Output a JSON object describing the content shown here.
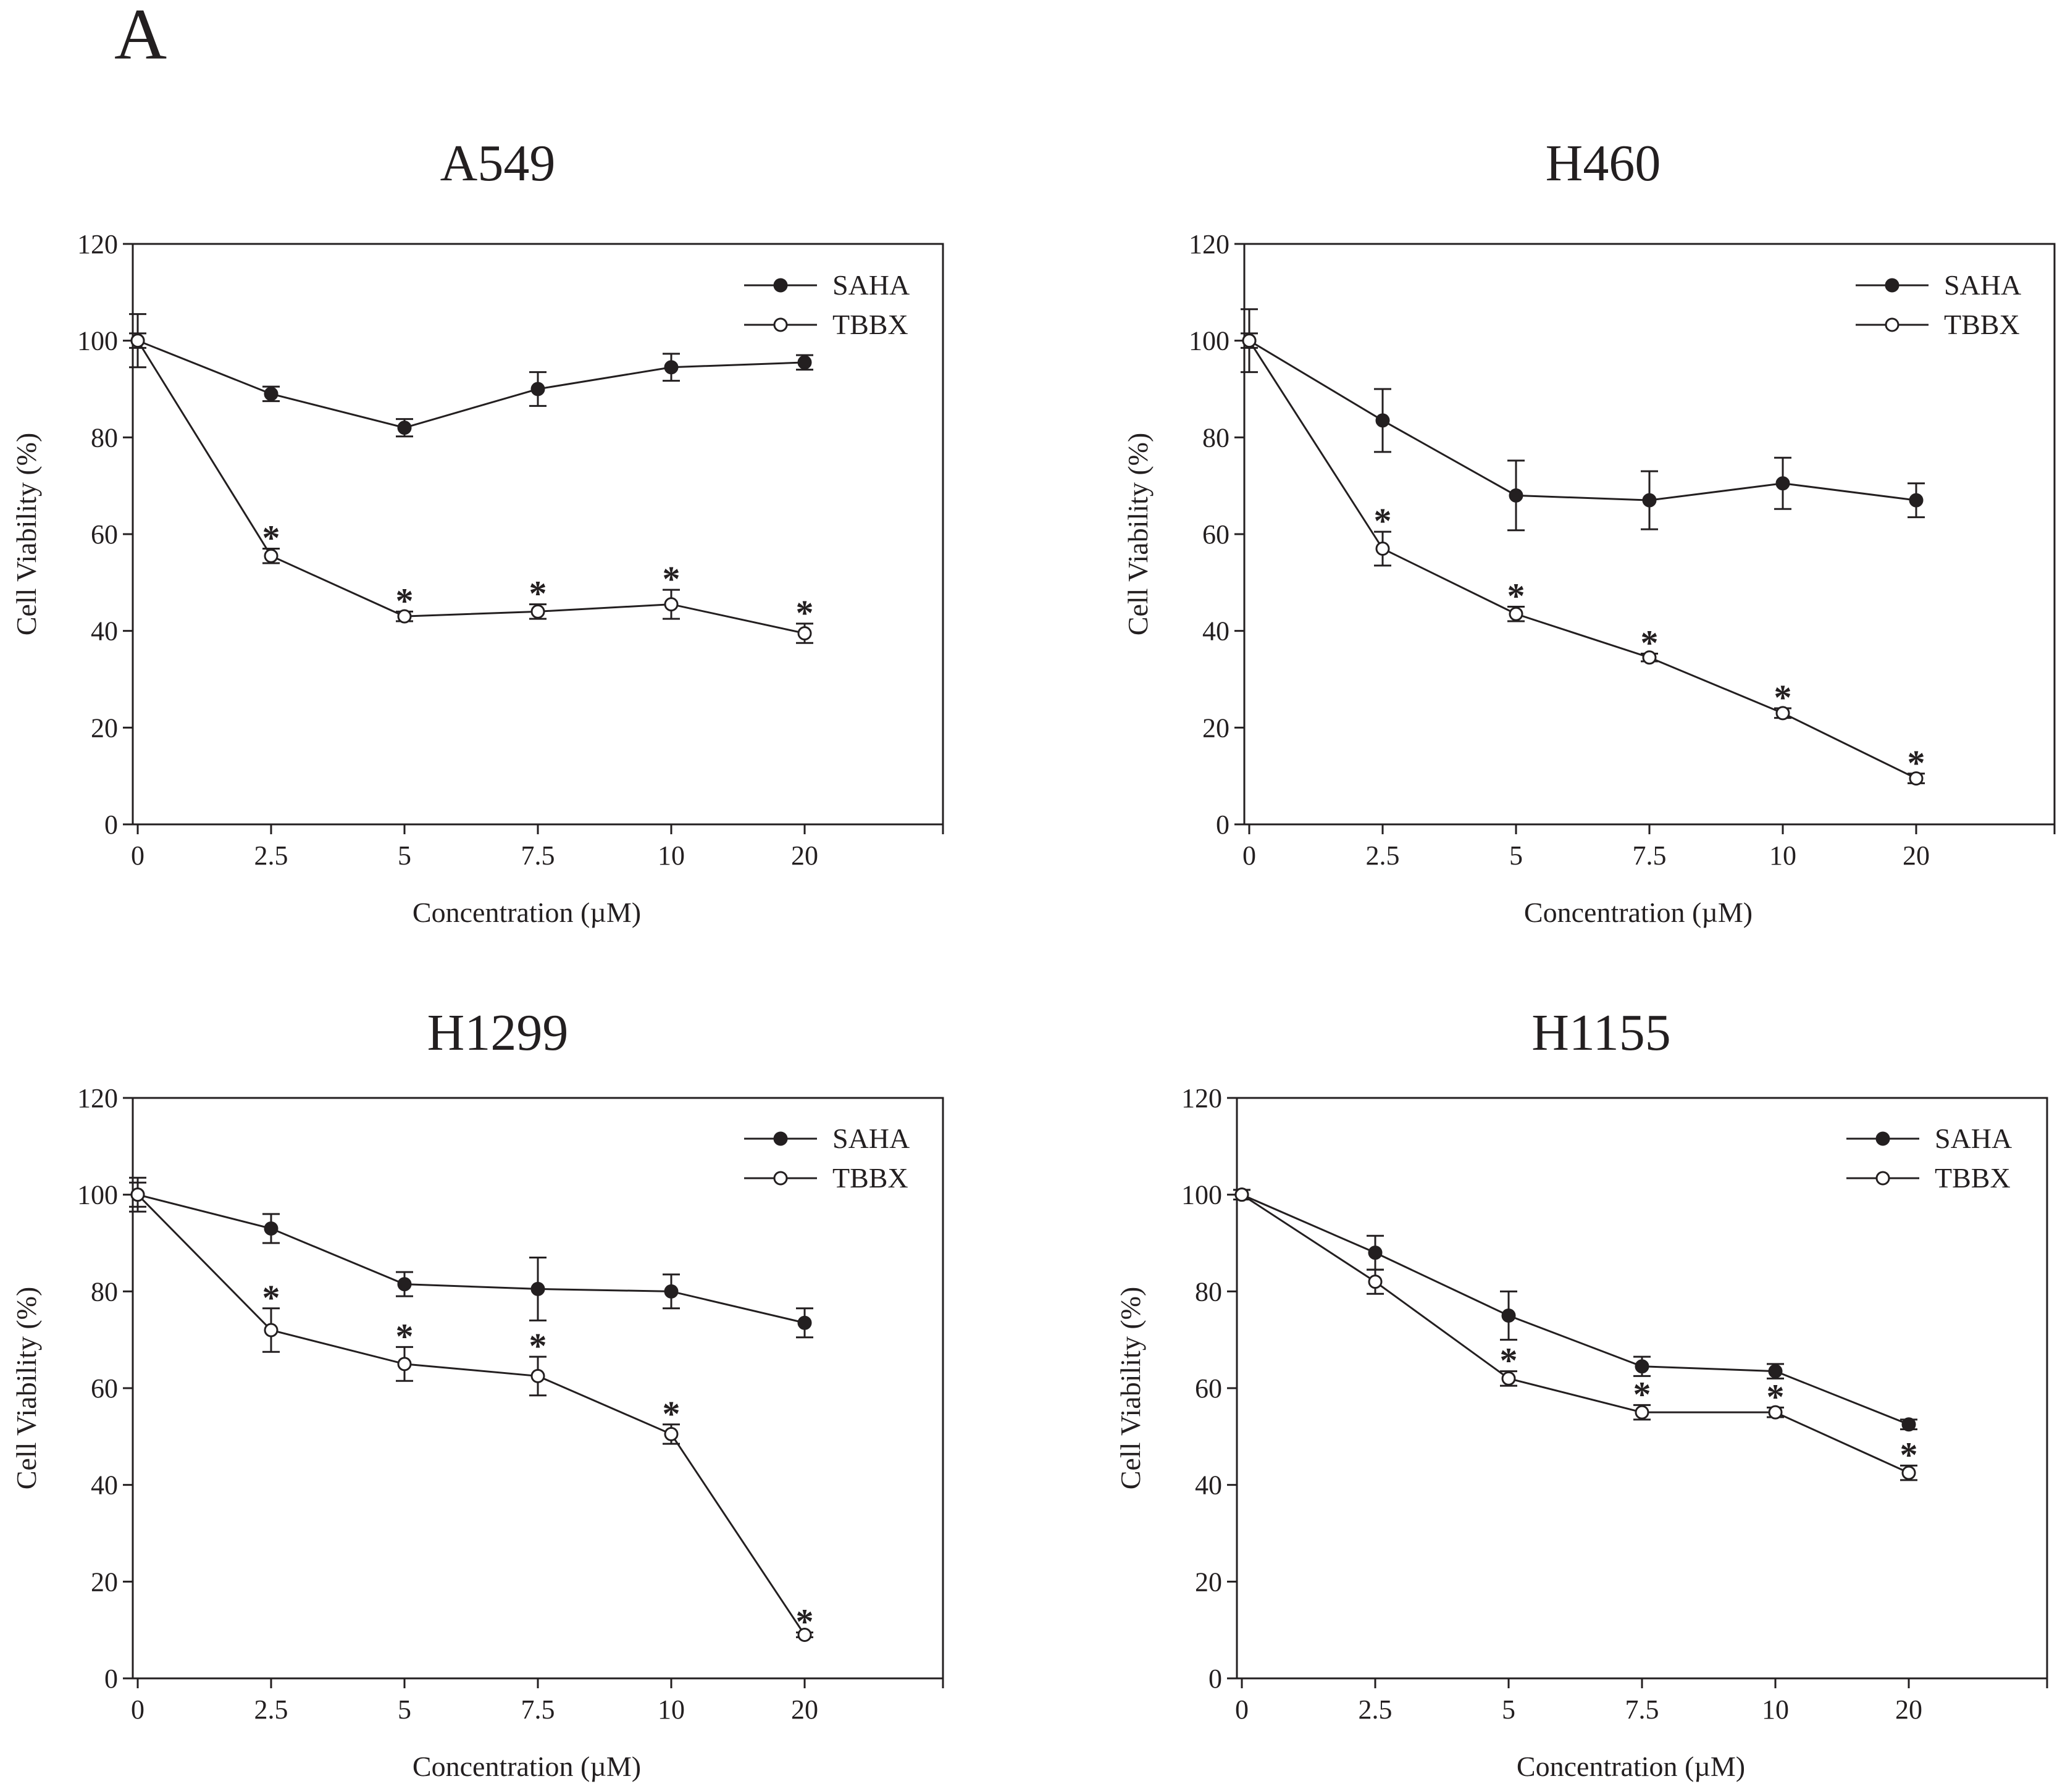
{
  "figure": {
    "panel_label": "A"
  },
  "chart_data": [
    {
      "type": "line",
      "title": "A549",
      "xlabel": "Concentration (µM)",
      "ylabel": "Cell Viability (%)",
      "categories": [
        "0",
        "2.5",
        "5",
        "7.5",
        "10",
        "20"
      ],
      "ylim": [
        0,
        120
      ],
      "yticks": [
        "0",
        "20",
        "40",
        "60",
        "80",
        "100",
        "120"
      ],
      "grid": false,
      "legend": "top-right",
      "series": [
        {
          "name": "SAHA",
          "marker": "filled",
          "values": [
            100,
            89,
            82,
            90,
            94.5,
            95.5
          ],
          "errors": [
            5.5,
            1.5,
            1.8,
            3.5,
            2.8,
            1.5
          ],
          "significance": [
            "",
            "",
            "",
            "",
            "",
            ""
          ]
        },
        {
          "name": "TBBX",
          "marker": "open",
          "values": [
            100,
            55.5,
            43,
            44,
            45.5,
            39.5
          ],
          "errors": [
            1.5,
            1.5,
            1.0,
            1.5,
            3.0,
            2.0
          ],
          "significance": [
            "",
            "*",
            "*",
            "*",
            "*",
            "*"
          ]
        }
      ]
    },
    {
      "type": "line",
      "title": "H460",
      "xlabel": "Concentration (µM)",
      "ylabel": "Cell Viability (%)",
      "categories": [
        "0",
        "2.5",
        "5",
        "7.5",
        "10",
        "20"
      ],
      "ylim": [
        0,
        120
      ],
      "yticks": [
        "0",
        "20",
        "40",
        "60",
        "80",
        "100",
        "120"
      ],
      "grid": false,
      "legend": "top-right",
      "series": [
        {
          "name": "SAHA",
          "marker": "filled",
          "values": [
            100,
            83.5,
            68,
            67,
            70.5,
            67
          ],
          "errors": [
            6.5,
            6.5,
            7.2,
            6.0,
            5.3,
            3.5
          ],
          "significance": [
            "",
            "",
            "",
            "",
            "",
            ""
          ]
        },
        {
          "name": "TBBX",
          "marker": "open",
          "values": [
            100,
            57,
            43.5,
            34.5,
            23,
            9.5
          ],
          "errors": [
            1.5,
            3.5,
            1.5,
            0.8,
            1.0,
            1.0
          ],
          "significance": [
            "",
            "*",
            "*",
            "*",
            "*",
            "*"
          ]
        }
      ]
    },
    {
      "type": "line",
      "title": "H1299",
      "xlabel": "Concentration (µM)",
      "ylabel": "Cell Viability (%)",
      "categories": [
        "0",
        "2.5",
        "5",
        "7.5",
        "10",
        "20"
      ],
      "ylim": [
        0,
        120
      ],
      "yticks": [
        "0",
        "20",
        "40",
        "60",
        "80",
        "100",
        "120"
      ],
      "grid": false,
      "legend": "top-right",
      "series": [
        {
          "name": "SAHA",
          "marker": "filled",
          "values": [
            100,
            93,
            81.5,
            80.5,
            80,
            73.5
          ],
          "errors": [
            3.5,
            3.0,
            2.5,
            6.5,
            3.5,
            3.0
          ],
          "significance": [
            "",
            "",
            "",
            "",
            "",
            ""
          ]
        },
        {
          "name": "TBBX",
          "marker": "open",
          "values": [
            100,
            72,
            65,
            62.5,
            50.5,
            9
          ],
          "errors": [
            2.5,
            4.5,
            3.5,
            4.0,
            2.0,
            0.5
          ],
          "significance": [
            "",
            "*",
            "*",
            "*",
            "*",
            "*"
          ]
        }
      ]
    },
    {
      "type": "line",
      "title": "H1155",
      "xlabel": "Concentration (µM)",
      "ylabel": "Cell Viability (%)",
      "categories": [
        "0",
        "2.5",
        "5",
        "7.5",
        "10",
        "20"
      ],
      "ylim": [
        0,
        120
      ],
      "yticks": [
        "0",
        "20",
        "40",
        "60",
        "80",
        "100",
        "120"
      ],
      "grid": false,
      "legend": "top-right",
      "series": [
        {
          "name": "SAHA",
          "marker": "filled",
          "values": [
            100,
            88,
            75,
            64.5,
            63.5,
            52.5
          ],
          "errors": [
            1.0,
            3.5,
            5.0,
            2.0,
            1.5,
            1.0
          ],
          "significance": [
            "",
            "",
            "",
            "",
            "",
            ""
          ]
        },
        {
          "name": "TBBX",
          "marker": "open",
          "values": [
            100,
            82,
            62,
            55,
            55,
            42.5
          ],
          "errors": [
            1.0,
            2.5,
            1.5,
            1.5,
            1.0,
            1.5
          ],
          "significance": [
            "",
            "",
            "*",
            "*",
            "*",
            "*"
          ]
        }
      ]
    }
  ]
}
